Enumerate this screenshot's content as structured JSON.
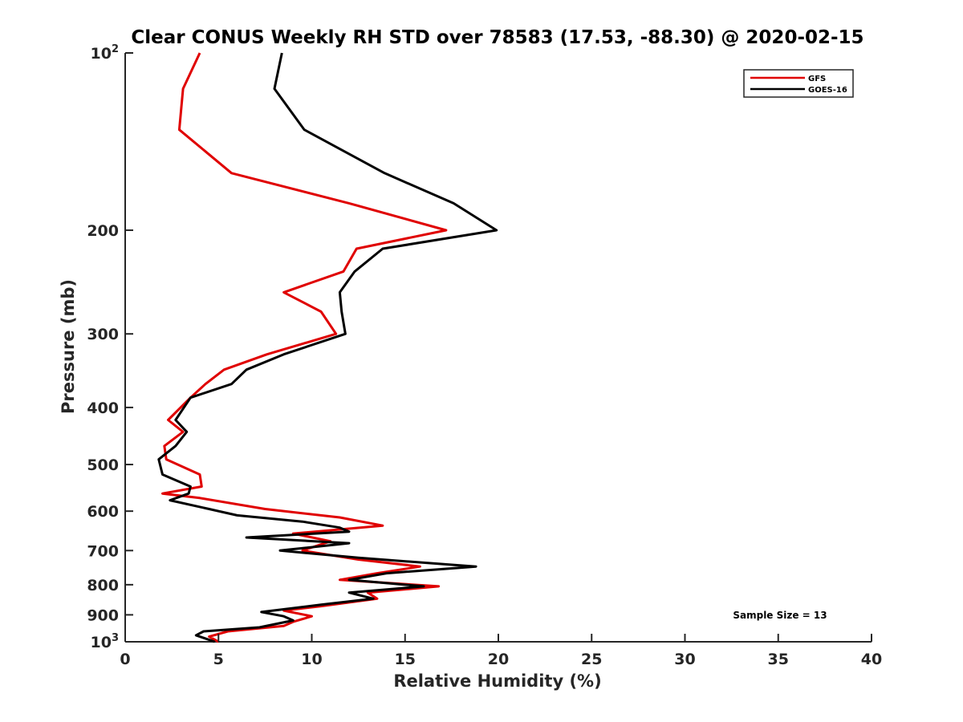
{
  "chart_data": {
    "type": "line",
    "title": "Clear CONUS Weekly RH STD over 78583 (17.53, -88.30) @ 2020-02-15",
    "xlabel": "Relative Humidity (%)",
    "ylabel": "Pressure (mb)",
    "xlim": [
      0,
      40
    ],
    "ylim": [
      100,
      1000
    ],
    "y_scale": "log",
    "y_reversed": true,
    "grid": false,
    "legend_position": "top-right",
    "x_ticks": [
      "0",
      "5",
      "10",
      "15",
      "20",
      "25",
      "30",
      "35",
      "40"
    ],
    "x_tick_values": [
      0,
      5,
      10,
      15,
      20,
      25,
      30,
      35,
      40
    ],
    "y_ticks": [
      {
        "value": 100,
        "base": "10",
        "exp": "2"
      },
      {
        "value": 200,
        "label": "200"
      },
      {
        "value": 300,
        "label": "300"
      },
      {
        "value": 400,
        "label": "400"
      },
      {
        "value": 500,
        "label": "500"
      },
      {
        "value": 600,
        "label": "600"
      },
      {
        "value": 700,
        "label": "700"
      },
      {
        "value": 800,
        "label": "800"
      },
      {
        "value": 900,
        "label": "900"
      },
      {
        "value": 1000,
        "base": "10",
        "exp": "3"
      }
    ],
    "series": [
      {
        "name": "GFS",
        "color": "#e00000",
        "points": [
          [
            4.0,
            100
          ],
          [
            3.1,
            115
          ],
          [
            2.9,
            135
          ],
          [
            5.7,
            160
          ],
          [
            12.0,
            180
          ],
          [
            17.2,
            200
          ],
          [
            12.4,
            215
          ],
          [
            11.7,
            235
          ],
          [
            8.5,
            255
          ],
          [
            10.5,
            275
          ],
          [
            11.3,
            300
          ],
          [
            7.6,
            325
          ],
          [
            5.3,
            345
          ],
          [
            4.3,
            365
          ],
          [
            3.5,
            385
          ],
          [
            2.3,
            420
          ],
          [
            3.1,
            440
          ],
          [
            2.1,
            465
          ],
          [
            2.2,
            490
          ],
          [
            4.0,
            520
          ],
          [
            4.1,
            545
          ],
          [
            2.0,
            560
          ],
          [
            4.0,
            570
          ],
          [
            7.5,
            595
          ],
          [
            11.5,
            615
          ],
          [
            13.8,
            635
          ],
          [
            9.0,
            655
          ],
          [
            11.0,
            675
          ],
          [
            9.5,
            700
          ],
          [
            12.5,
            725
          ],
          [
            15.8,
            745
          ],
          [
            13.5,
            765
          ],
          [
            11.5,
            785
          ],
          [
            16.8,
            805
          ],
          [
            13.0,
            825
          ],
          [
            13.5,
            845
          ],
          [
            10.5,
            870
          ],
          [
            8.5,
            885
          ],
          [
            10.0,
            905
          ],
          [
            9.0,
            925
          ],
          [
            8.5,
            940
          ],
          [
            5.5,
            960
          ],
          [
            4.5,
            980
          ],
          [
            5.0,
            1000
          ]
        ]
      },
      {
        "name": "GOES-16",
        "color": "#000000",
        "points": [
          [
            8.4,
            100
          ],
          [
            8.0,
            115
          ],
          [
            9.6,
            135
          ],
          [
            13.9,
            160
          ],
          [
            17.6,
            180
          ],
          [
            19.9,
            200
          ],
          [
            13.8,
            215
          ],
          [
            12.3,
            235
          ],
          [
            11.5,
            255
          ],
          [
            11.6,
            275
          ],
          [
            11.8,
            300
          ],
          [
            8.5,
            325
          ],
          [
            6.5,
            345
          ],
          [
            5.7,
            365
          ],
          [
            3.5,
            385
          ],
          [
            2.7,
            420
          ],
          [
            3.3,
            440
          ],
          [
            2.7,
            465
          ],
          [
            1.8,
            490
          ],
          [
            2.0,
            520
          ],
          [
            3.5,
            545
          ],
          [
            3.4,
            560
          ],
          [
            2.4,
            575
          ],
          [
            4.5,
            595
          ],
          [
            6.0,
            610
          ],
          [
            9.5,
            625
          ],
          [
            11.5,
            640
          ],
          [
            12.0,
            650
          ],
          [
            6.5,
            665
          ],
          [
            12.0,
            680
          ],
          [
            8.3,
            700
          ],
          [
            12.5,
            720
          ],
          [
            18.8,
            745
          ],
          [
            14.0,
            765
          ],
          [
            12.0,
            785
          ],
          [
            16.0,
            805
          ],
          [
            12.0,
            825
          ],
          [
            13.3,
            845
          ],
          [
            10.5,
            865
          ],
          [
            7.3,
            890
          ],
          [
            8.5,
            905
          ],
          [
            9.0,
            920
          ],
          [
            7.2,
            945
          ],
          [
            4.2,
            960
          ],
          [
            3.8,
            975
          ],
          [
            4.8,
            1000
          ]
        ]
      }
    ],
    "annotation": "Sample Size = 13"
  }
}
